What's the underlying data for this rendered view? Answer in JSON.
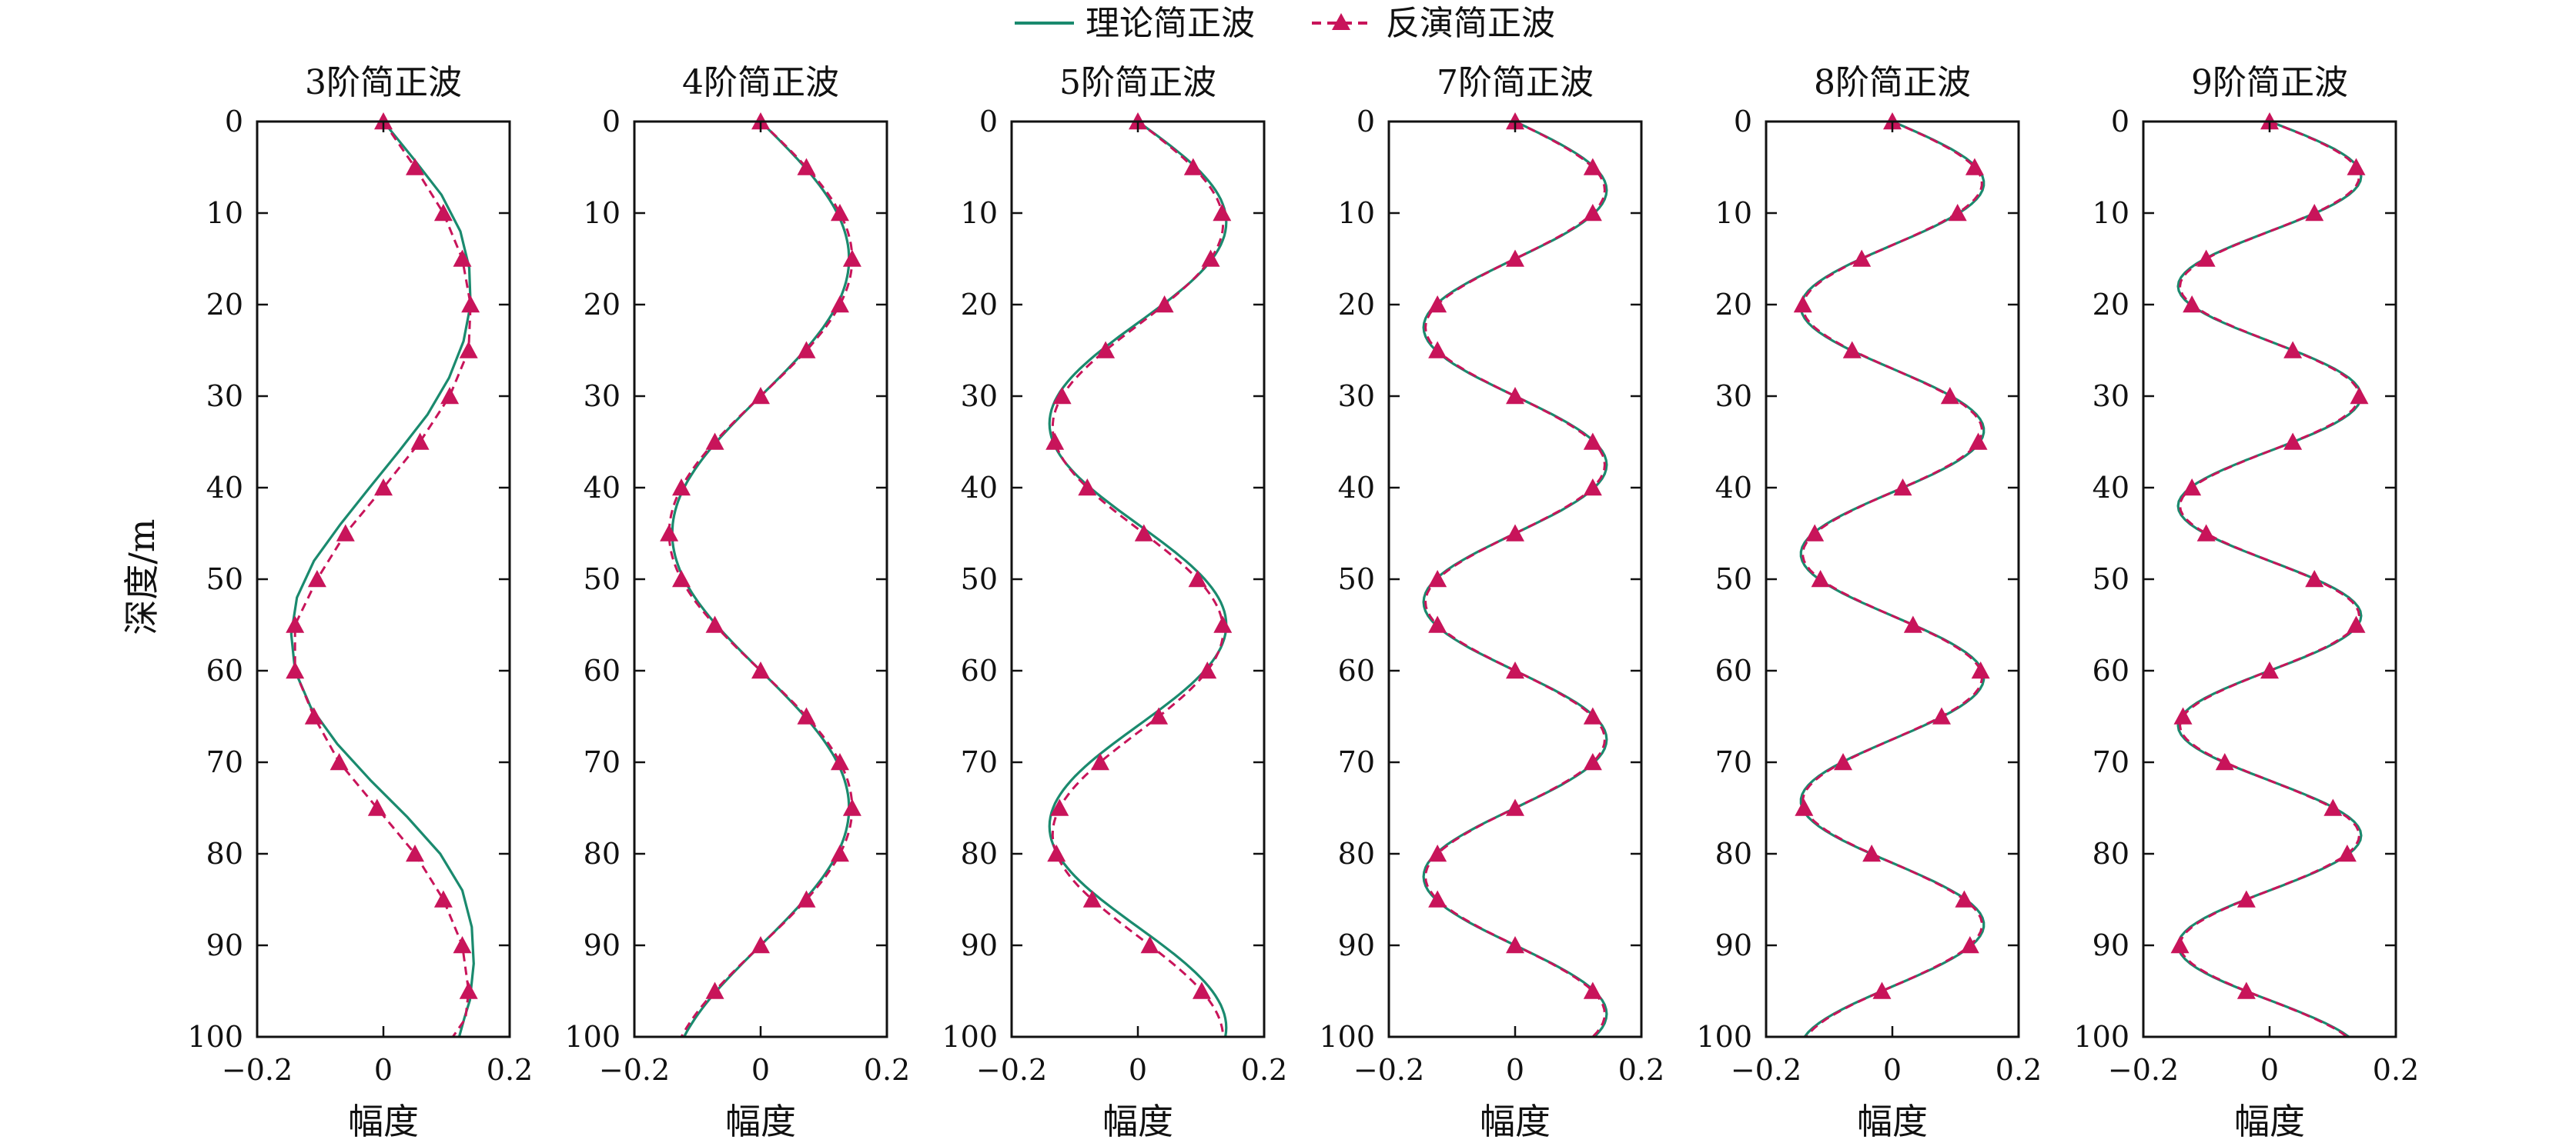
{
  "legend": {
    "theory_label": "理论简正波",
    "inversion_label": "反演简正波"
  },
  "colors": {
    "theory": "#1a8a6e",
    "inversion": "#c8145a",
    "axes": "#111111"
  },
  "chart_data": [
    {
      "type": "line",
      "title": "3阶简正波",
      "xlabel": "幅度",
      "ylabel": "深度/m",
      "xlim": [
        -0.2,
        0.2
      ],
      "ylim": [
        0,
        100
      ],
      "y_inverted": true,
      "xticks": [
        "−0.2",
        "0",
        "0.2"
      ],
      "yticks": [
        "0",
        "10",
        "20",
        "30",
        "40",
        "50",
        "60",
        "70",
        "80",
        "90",
        "100"
      ],
      "grid": false,
      "series": [
        {
          "name": "理论简正波",
          "style": "solid",
          "x": [
            0.0,
            0.047,
            0.092,
            0.122,
            0.136,
            0.138,
            0.127,
            0.104,
            0.07,
            0.025,
            -0.022,
            -0.068,
            -0.11,
            -0.137,
            -0.146,
            -0.14,
            -0.115,
            -0.073,
            -0.02,
            0.038,
            0.09,
            0.125,
            0.14,
            0.143,
            0.137,
            0.128,
            0.12
          ],
          "y": [
            0,
            4,
            8,
            12,
            16,
            20,
            24,
            28,
            32,
            36,
            40,
            44,
            48,
            52,
            56,
            60,
            64,
            68,
            72,
            76,
            80,
            84,
            88,
            92,
            96,
            98,
            100
          ]
        },
        {
          "name": "反演简正波",
          "style": "dashed",
          "marker": "triangle",
          "x": [
            0.0,
            0.05,
            0.095,
            0.125,
            0.138,
            0.135,
            0.105,
            0.058,
            0.0,
            -0.06,
            -0.105,
            -0.14,
            -0.14,
            -0.11,
            -0.07,
            -0.01,
            0.05,
            0.095,
            0.125,
            0.135,
            0.13,
            0.11
          ],
          "y": [
            0,
            5,
            10,
            15,
            20,
            25,
            30,
            35,
            40,
            45,
            50,
            55,
            60,
            65,
            70,
            75,
            80,
            85,
            90,
            95,
            98,
            100
          ],
          "markers_y": [
            0,
            5,
            10,
            15,
            20,
            25,
            30,
            35,
            40,
            45,
            50,
            55,
            60,
            65,
            70,
            75,
            80,
            85,
            90,
            95
          ]
        }
      ]
    },
    {
      "type": "line",
      "title": "4阶简正波",
      "xlabel": "幅度",
      "xlim": [
        -0.2,
        0.2
      ],
      "ylim": [
        0,
        100
      ],
      "y_inverted": true,
      "xticks": [
        "−0.2",
        "0",
        "0.2"
      ],
      "yticks": [
        "0",
        "10",
        "20",
        "30",
        "40",
        "50",
        "60",
        "70",
        "80",
        "90",
        "100"
      ],
      "series": [
        {
          "name": "理论简正波",
          "wave": "sine",
          "amplitude": 0.14,
          "period_m": 60,
          "phase_deg": 0
        },
        {
          "name": "反演简正波",
          "wave": "sine",
          "amplitude": 0.145,
          "period_m": 60,
          "phase_deg": 0,
          "marker": "triangle",
          "marker_step_m": 5
        }
      ]
    },
    {
      "type": "line",
      "title": "5阶简正波",
      "xlabel": "幅度",
      "xlim": [
        -0.2,
        0.2
      ],
      "ylim": [
        0,
        100
      ],
      "y_inverted": true,
      "xticks": [
        "−0.2",
        "0",
        "0.2"
      ],
      "yticks": [
        "0",
        "10",
        "20",
        "30",
        "40",
        "50",
        "60",
        "70",
        "80",
        "90",
        "100"
      ],
      "series": [
        {
          "name": "理论简正波",
          "wave": "sine",
          "amplitude": 0.14,
          "period_m": 44,
          "phase_deg": 0
        },
        {
          "name": "反演简正波",
          "wave": "sine",
          "amplitude": 0.135,
          "period_m": 44.5,
          "phase_deg": 0,
          "marker": "triangle",
          "marker_step_m": 5
        }
      ]
    },
    {
      "type": "line",
      "title": "7阶简正波",
      "xlabel": "幅度",
      "xlim": [
        -0.2,
        0.2
      ],
      "ylim": [
        0,
        100
      ],
      "y_inverted": true,
      "xticks": [
        "−0.2",
        "0",
        "0.2"
      ],
      "yticks": [
        "0",
        "10",
        "20",
        "30",
        "40",
        "50",
        "60",
        "70",
        "80",
        "90",
        "100"
      ],
      "series": [
        {
          "name": "理论简正波",
          "wave": "sine",
          "amplitude": 0.145,
          "period_m": 30,
          "phase_deg": 0
        },
        {
          "name": "反演简正波",
          "wave": "sine",
          "amplitude": 0.142,
          "period_m": 30,
          "phase_deg": 0,
          "marker": "triangle",
          "marker_step_m": 5
        }
      ]
    },
    {
      "type": "line",
      "title": "8阶简正波",
      "xlabel": "幅度",
      "xlim": [
        -0.2,
        0.2
      ],
      "ylim": [
        0,
        100
      ],
      "y_inverted": true,
      "xticks": [
        "−0.2",
        "0",
        "0.2"
      ],
      "yticks": [
        "0",
        "10",
        "20",
        "30",
        "40",
        "50",
        "60",
        "70",
        "80",
        "90",
        "100"
      ],
      "series": [
        {
          "name": "理论简正波",
          "wave": "sine",
          "amplitude": 0.145,
          "period_m": 27,
          "phase_deg": 0
        },
        {
          "name": "反演简正波",
          "wave": "sine",
          "amplitude": 0.142,
          "period_m": 27,
          "phase_deg": 0,
          "marker": "triangle",
          "marker_step_m": 5
        }
      ]
    },
    {
      "type": "line",
      "title": "9阶简正波",
      "xlabel": "幅度",
      "xlim": [
        -0.2,
        0.2
      ],
      "ylim": [
        0,
        100
      ],
      "y_inverted": true,
      "xticks": [
        "−0.2",
        "0",
        "0.2"
      ],
      "yticks": [
        "0",
        "10",
        "20",
        "30",
        "40",
        "50",
        "60",
        "70",
        "80",
        "90",
        "100"
      ],
      "series": [
        {
          "name": "理论简正波",
          "wave": "sine",
          "amplitude": 0.145,
          "period_m": 24,
          "phase_deg": 0
        },
        {
          "name": "反演简正波",
          "wave": "sine",
          "amplitude": 0.142,
          "period_m": 24,
          "phase_deg": 0,
          "marker": "triangle",
          "marker_step_m": 5
        }
      ]
    }
  ]
}
